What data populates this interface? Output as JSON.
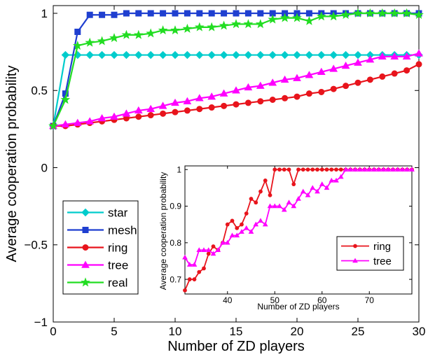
{
  "chart_data": [
    {
      "type": "line",
      "xlabel": "Number of ZD players",
      "ylabel": "Average cooperation probability",
      "xlim": [
        0,
        30
      ],
      "ylim": [
        -1,
        1.05
      ],
      "xticks": [
        0,
        5,
        10,
        15,
        20,
        25,
        30
      ],
      "yticks": [
        -1,
        -0.5,
        0,
        0.5,
        1
      ],
      "xtick_labels": [
        "0",
        "5",
        "10",
        "15",
        "20",
        "25",
        "30"
      ],
      "ytick_labels": [
        "−1",
        "−0.5",
        "0",
        "0.5",
        "1"
      ],
      "grid": false,
      "legend_position": "bottom-left",
      "x": [
        0,
        1,
        2,
        3,
        4,
        5,
        6,
        7,
        8,
        9,
        10,
        11,
        12,
        13,
        14,
        15,
        16,
        17,
        18,
        19,
        20,
        21,
        22,
        23,
        24,
        25,
        26,
        27,
        28,
        29,
        30
      ],
      "series": [
        {
          "name": "star",
          "color": "#00cccc",
          "marker": "diamond",
          "values": [
            0.27,
            0.73,
            0.73,
            0.73,
            0.73,
            0.73,
            0.73,
            0.73,
            0.73,
            0.73,
            0.73,
            0.73,
            0.73,
            0.73,
            0.73,
            0.73,
            0.73,
            0.73,
            0.73,
            0.73,
            0.73,
            0.73,
            0.73,
            0.73,
            0.73,
            0.73,
            0.73,
            0.73,
            0.73,
            0.73,
            0.73
          ]
        },
        {
          "name": "mesh",
          "color": "#1f3fd0",
          "marker": "square",
          "values": [
            0.27,
            0.48,
            0.88,
            0.99,
            0.99,
            0.99,
            1.0,
            1.0,
            1.0,
            1.0,
            1.0,
            1.0,
            1.0,
            1.0,
            1.0,
            1.0,
            1.0,
            1.0,
            1.0,
            1.0,
            1.0,
            1.0,
            1.0,
            1.0,
            1.0,
            1.0,
            1.0,
            1.0,
            1.0,
            1.0,
            1.0
          ]
        },
        {
          "name": "ring",
          "color": "#e8141c",
          "marker": "circle",
          "values": [
            0.27,
            0.27,
            0.28,
            0.29,
            0.3,
            0.31,
            0.32,
            0.33,
            0.34,
            0.35,
            0.36,
            0.37,
            0.38,
            0.39,
            0.4,
            0.41,
            0.42,
            0.43,
            0.44,
            0.45,
            0.46,
            0.48,
            0.49,
            0.51,
            0.53,
            0.55,
            0.57,
            0.59,
            0.61,
            0.63,
            0.67
          ]
        },
        {
          "name": "tree",
          "color": "#ff00ff",
          "marker": "triangle",
          "values": [
            0.27,
            0.28,
            0.29,
            0.3,
            0.32,
            0.33,
            0.35,
            0.37,
            0.38,
            0.4,
            0.42,
            0.43,
            0.45,
            0.46,
            0.48,
            0.5,
            0.52,
            0.53,
            0.55,
            0.57,
            0.58,
            0.6,
            0.62,
            0.64,
            0.66,
            0.68,
            0.7,
            0.72,
            0.72,
            0.72,
            0.74
          ]
        },
        {
          "name": "real",
          "color": "#22dd22",
          "marker": "star",
          "values": [
            0.27,
            0.44,
            0.79,
            0.81,
            0.82,
            0.84,
            0.86,
            0.86,
            0.87,
            0.89,
            0.89,
            0.9,
            0.91,
            0.91,
            0.92,
            0.93,
            0.93,
            0.93,
            0.96,
            0.97,
            0.97,
            0.95,
            0.98,
            0.98,
            0.99,
            1.0,
            1.0,
            1.0,
            1.0,
            1.0,
            0.99
          ]
        }
      ]
    },
    {
      "type": "line",
      "xlabel": "Number of ZD players",
      "ylabel": "Average cooperation probability",
      "xlim": [
        31,
        79
      ],
      "ylim": [
        0.66,
        1.01
      ],
      "xticks": [
        40,
        50,
        60,
        70
      ],
      "yticks": [
        0.7,
        0.8,
        0.9,
        1
      ],
      "xtick_labels": [
        "40",
        "50",
        "60",
        "70"
      ],
      "ytick_labels": [
        "0.7",
        "0.8",
        "0.9",
        "1"
      ],
      "grid": false,
      "legend_position": "bottom-right",
      "x": [
        31,
        32,
        33,
        34,
        35,
        36,
        37,
        38,
        39,
        40,
        41,
        42,
        43,
        44,
        45,
        46,
        47,
        48,
        49,
        50,
        51,
        52,
        53,
        54,
        55,
        56,
        57,
        58,
        59,
        60,
        61,
        62,
        63,
        64,
        65,
        66,
        67,
        68,
        69,
        70,
        71,
        72,
        73,
        74,
        75,
        76,
        77,
        78,
        79
      ],
      "series": [
        {
          "name": "ring",
          "color": "#e8141c",
          "marker": "circle",
          "values": [
            0.67,
            0.7,
            0.7,
            0.72,
            0.73,
            0.77,
            0.79,
            0.78,
            0.8,
            0.85,
            0.86,
            0.84,
            0.85,
            0.88,
            0.92,
            0.91,
            0.94,
            0.97,
            0.93,
            1.0,
            1.0,
            1.0,
            1.0,
            0.96,
            1.0,
            1.0,
            1.0,
            1.0,
            1.0,
            1.0,
            1.0,
            1.0,
            1.0,
            1.0,
            1.0,
            1.0,
            1.0,
            1.0,
            1.0,
            1.0,
            1.0,
            1.0,
            1.0,
            1.0,
            1.0,
            1.0,
            1.0,
            1.0,
            1.0
          ]
        },
        {
          "name": "tree",
          "color": "#ff00ff",
          "marker": "triangle",
          "values": [
            0.76,
            0.74,
            0.74,
            0.78,
            0.78,
            0.78,
            0.77,
            0.78,
            0.8,
            0.8,
            0.82,
            0.82,
            0.83,
            0.84,
            0.83,
            0.85,
            0.86,
            0.85,
            0.9,
            0.9,
            0.9,
            0.89,
            0.91,
            0.9,
            0.92,
            0.94,
            0.93,
            0.95,
            0.94,
            0.96,
            0.95,
            0.97,
            0.97,
            0.98,
            1.0,
            1.0,
            1.0,
            1.0,
            1.0,
            1.0,
            1.0,
            1.0,
            1.0,
            1.0,
            1.0,
            1.0,
            1.0,
            1.0,
            1.0
          ]
        }
      ]
    }
  ]
}
